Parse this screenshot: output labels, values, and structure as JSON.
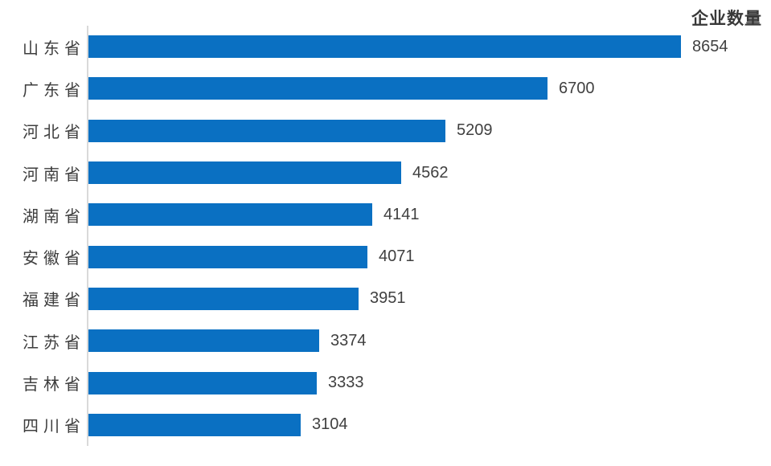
{
  "chart_data": {
    "type": "bar",
    "orientation": "horizontal",
    "title": "企业数量",
    "series_name": "企业数量",
    "categories": [
      "山东省",
      "广东省",
      "河北省",
      "河南省",
      "湖南省",
      "安徽省",
      "福建省",
      "江苏省",
      "吉林省",
      "四川省"
    ],
    "values": [
      8654,
      6700,
      5209,
      4562,
      4141,
      4071,
      3951,
      3374,
      3333,
      3104
    ],
    "data_labels": true,
    "xlabel": "",
    "ylabel": "",
    "xlim": [
      0,
      10000
    ],
    "grid": false,
    "legend_position": "none",
    "colors": {
      "bar": "#0a70c2",
      "axis_line": "#d9d9d9",
      "category_label": "#3d3d3d",
      "value_label": "#404040",
      "title": "#383838",
      "background": "#ffffff"
    }
  }
}
